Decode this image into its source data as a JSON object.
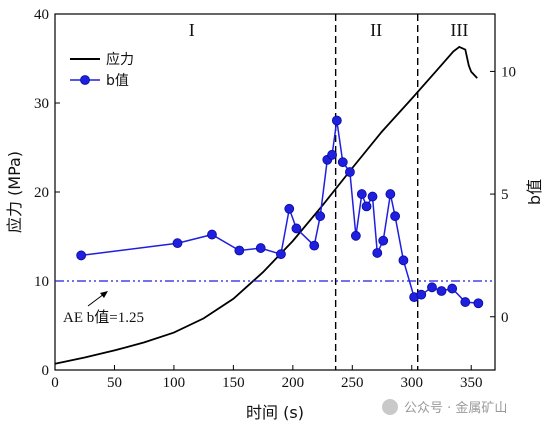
{
  "chart_data": {
    "type": "line",
    "xlabel": "时间 (s)",
    "ylabel_left": "应力 (MPa)",
    "ylabel_right": "b值",
    "xlim": [
      0,
      370
    ],
    "ylim_left": [
      0,
      40
    ],
    "ylim_right": [
      -2.17,
      12.34
    ],
    "xticks": [
      0,
      50,
      100,
      150,
      200,
      250,
      300,
      350
    ],
    "yticks_left": [
      0,
      10,
      20,
      30,
      40
    ],
    "yticks_right": [
      0,
      5,
      10
    ],
    "grid": false,
    "legend_position": "top-left",
    "regions": [
      {
        "label": "I",
        "x_center": 115
      },
      {
        "label": "II",
        "x_center": 270
      },
      {
        "label": "III",
        "x_center": 340
      }
    ],
    "dividers_x": [
      236,
      305
    ],
    "series": [
      {
        "name": "应力",
        "axis": "left",
        "color": "#000000",
        "x": [
          0,
          25,
          50,
          75,
          100,
          125,
          150,
          175,
          200,
          225,
          250,
          275,
          300,
          320,
          335,
          340,
          345,
          348,
          350,
          355
        ],
        "y": [
          0.7,
          1.4,
          2.2,
          3.1,
          4.2,
          5.8,
          8.0,
          11.0,
          14.5,
          18.5,
          22.7,
          26.8,
          30.5,
          33.5,
          35.8,
          36.3,
          36.0,
          34.2,
          33.5,
          32.8
        ]
      },
      {
        "name": "b值",
        "axis": "right",
        "color": "#1f1fe0",
        "x": [
          22,
          103,
          132,
          155,
          173,
          190,
          197,
          203,
          218,
          223,
          229,
          233,
          237,
          242,
          248,
          253,
          258,
          262,
          267,
          271,
          276,
          282,
          286,
          293,
          302,
          308,
          317,
          325,
          334,
          345,
          356
        ],
        "y": [
          2.5,
          3.0,
          3.35,
          2.7,
          2.8,
          2.55,
          4.4,
          3.6,
          2.9,
          4.1,
          6.4,
          6.6,
          8.0,
          6.3,
          5.9,
          3.3,
          5.0,
          4.5,
          4.9,
          2.6,
          3.1,
          5.0,
          4.1,
          2.3,
          0.8,
          0.9,
          1.2,
          1.05,
          1.15,
          0.6,
          0.55
        ]
      }
    ],
    "annotation": {
      "text": "AE b值=1.25",
      "value_left_axis": 10.0
    }
  },
  "watermark": "公众号 · 金属矿山"
}
